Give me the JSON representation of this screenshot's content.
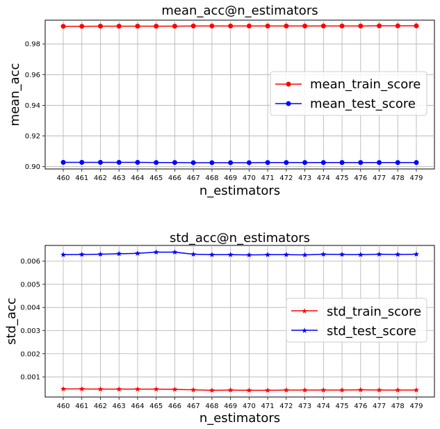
{
  "chart_data": [
    {
      "type": "line",
      "title": "mean_acc@n_estimators",
      "xlabel": "n_estimators",
      "ylabel": "mean_acc",
      "x": [
        460,
        461,
        462,
        463,
        464,
        465,
        466,
        467,
        468,
        469,
        470,
        471,
        472,
        473,
        474,
        475,
        476,
        477,
        478,
        479
      ],
      "ylim": [
        0.8985,
        0.9955
      ],
      "yticks": [
        "0.90",
        "0.92",
        "0.94",
        "0.96",
        "0.98"
      ],
      "yticks_values": [
        0.9,
        0.92,
        0.94,
        0.96,
        0.98
      ],
      "grid": true,
      "legend_placement": "center-right",
      "series": [
        {
          "name": "mean_train_score",
          "color": "#ff0000",
          "marker": "circle",
          "values": [
            0.9915,
            0.9915,
            0.9916,
            0.9916,
            0.9916,
            0.9916,
            0.9916,
            0.9917,
            0.9917,
            0.9917,
            0.9917,
            0.9917,
            0.9917,
            0.9917,
            0.9917,
            0.9917,
            0.9917,
            0.9918,
            0.9918,
            0.9918
          ]
        },
        {
          "name": "mean_test_score",
          "color": "#0000ff",
          "marker": "circle",
          "values": [
            0.9028,
            0.9028,
            0.9028,
            0.9028,
            0.9028,
            0.9027,
            0.9027,
            0.9026,
            0.9026,
            0.9026,
            0.9026,
            0.9027,
            0.9027,
            0.9027,
            0.9027,
            0.9027,
            0.9027,
            0.9027,
            0.9027,
            0.9027
          ]
        }
      ]
    },
    {
      "type": "line",
      "title": "std_acc@n_estimators",
      "xlabel": "n_estimators",
      "ylabel": "std_acc",
      "x": [
        460,
        461,
        462,
        463,
        464,
        465,
        466,
        467,
        468,
        469,
        470,
        471,
        472,
        473,
        474,
        475,
        476,
        477,
        478,
        479
      ],
      "ylim": [
        0.00013,
        0.00668
      ],
      "yticks": [
        "0.001",
        "0.002",
        "0.003",
        "0.004",
        "0.005",
        "0.006"
      ],
      "yticks_values": [
        0.001,
        0.002,
        0.003,
        0.004,
        0.005,
        0.006
      ],
      "grid": true,
      "legend_placement": "center-right",
      "series": [
        {
          "name": "std_train_score",
          "color": "#ff0000",
          "marker": "star",
          "values": [
            0.00048,
            0.00048,
            0.00047,
            0.00047,
            0.00047,
            0.00047,
            0.00046,
            0.00044,
            0.00042,
            0.00043,
            0.00042,
            0.00042,
            0.00043,
            0.00043,
            0.00043,
            0.00043,
            0.00044,
            0.00043,
            0.00043,
            0.00043
          ]
        },
        {
          "name": "std_test_score",
          "color": "#0000ff",
          "marker": "star",
          "values": [
            0.00628,
            0.00629,
            0.0063,
            0.00632,
            0.00634,
            0.00639,
            0.00639,
            0.0063,
            0.00628,
            0.00628,
            0.00627,
            0.00628,
            0.00628,
            0.00627,
            0.0063,
            0.00629,
            0.00628,
            0.0063,
            0.00629,
            0.0063
          ]
        }
      ]
    }
  ]
}
